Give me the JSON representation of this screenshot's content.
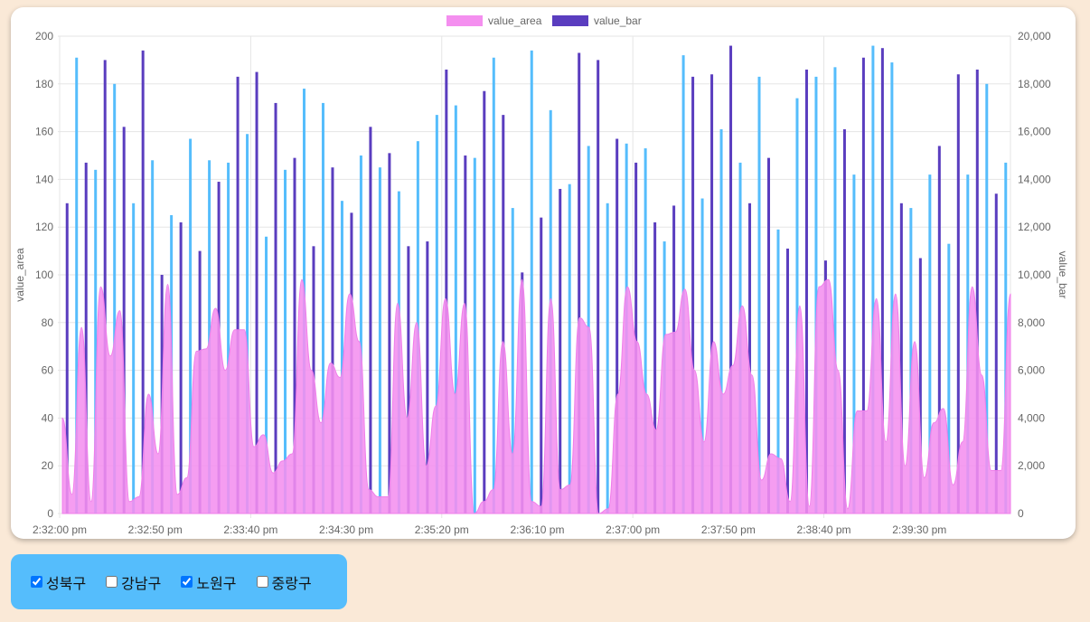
{
  "chart_data": {
    "type": "bar",
    "x_labels": [
      "2:32:00 pm",
      "2:32:50 pm",
      "2:33:40 pm",
      "2:34:30 pm",
      "2:35:20 pm",
      "2:36:10 pm",
      "2:37:00 pm",
      "2:37:50 pm",
      "2:38:40 pm",
      "2:39:30 pm"
    ],
    "y_left": {
      "label": "value_area",
      "min": 0,
      "max": 200,
      "ticks": [
        "0",
        "20",
        "40",
        "60",
        "80",
        "100",
        "120",
        "140",
        "160",
        "180",
        "200"
      ]
    },
    "y_right": {
      "label": "value_bar",
      "min": 0,
      "max": 20000,
      "ticks": [
        "0",
        "2,000",
        "4,000",
        "6,000",
        "8,000",
        "10,000",
        "12,000",
        "14,000",
        "16,000",
        "18,000",
        "20,000"
      ]
    },
    "legend": {
      "position": "top",
      "items": [
        {
          "label": "value_area",
          "color": "#f48fef"
        },
        {
          "label": "value_bar",
          "color": "#5a3dbf"
        }
      ]
    },
    "grid": true,
    "colors": {
      "area_fill": "#f48fef",
      "area_stroke": "#ef7fea",
      "bar_dark": "#5a3dbf",
      "bar_light": "#55bdfc"
    },
    "series": [
      {
        "name": "value_bar",
        "axis": "right",
        "type": "bar",
        "color_pattern": "purple bars alternate with light-blue bars",
        "values": [
          13000,
          19100,
          14700,
          14400,
          19000,
          18000,
          16200,
          13000,
          19400,
          14800,
          10000,
          12500,
          12200,
          15700,
          11000,
          14800,
          13900,
          14700,
          18300,
          15900,
          18500,
          11600,
          17200,
          14400,
          14900,
          17800,
          11200,
          17200,
          14500,
          13100,
          12600,
          15000,
          16200,
          14500,
          15100,
          13500,
          11200,
          15600,
          11400,
          16700,
          18600,
          17100,
          15000,
          14900,
          17700,
          19100,
          16700,
          12800,
          10100,
          19400,
          12400,
          16900,
          13600,
          13800,
          19300,
          15400,
          19000,
          13000,
          15700,
          15500,
          14700,
          15300,
          12200,
          11400,
          12900,
          19200,
          18300,
          13200,
          18400,
          16100,
          19600,
          14700,
          13000,
          18300,
          14900,
          11900,
          11100,
          17400,
          18600,
          18300,
          10600,
          18700,
          16100,
          14200,
          19100,
          19600,
          19500,
          18900,
          13000,
          12800,
          10700,
          14200,
          15400,
          11300,
          18400,
          14200,
          18600,
          18000,
          13400,
          14700
        ]
      },
      {
        "name": "value_area",
        "axis": "left",
        "type": "area",
        "values": [
          40,
          8,
          78,
          5,
          95,
          66,
          85,
          5,
          7,
          50,
          25,
          96,
          8,
          15,
          68,
          69,
          86,
          60,
          77,
          77,
          28,
          33,
          17,
          22,
          25,
          98,
          60,
          38,
          63,
          57,
          92,
          72,
          10,
          7,
          7,
          88,
          40,
          80,
          20,
          45,
          90,
          50,
          88,
          0,
          5,
          10,
          72,
          25,
          98,
          5,
          3,
          90,
          10,
          12,
          82,
          78,
          0,
          2,
          50,
          95,
          72,
          50,
          35,
          75,
          76,
          94,
          60,
          30,
          72,
          50,
          62,
          87,
          58,
          14,
          25,
          23,
          5,
          87,
          3,
          95,
          98,
          60,
          2,
          43,
          43,
          90,
          30,
          92,
          20,
          72,
          15,
          38,
          44,
          12,
          30,
          95,
          58,
          18,
          18,
          92
        ]
      }
    ]
  },
  "filters": {
    "items": [
      {
        "label": "성북구",
        "checked": true
      },
      {
        "label": "강남구",
        "checked": false
      },
      {
        "label": "노원구",
        "checked": true
      },
      {
        "label": "중랑구",
        "checked": false
      }
    ]
  }
}
